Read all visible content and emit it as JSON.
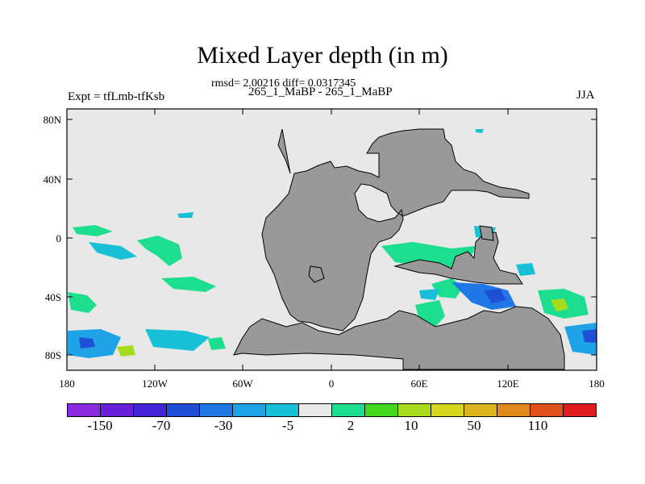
{
  "title": "Mixed Layer depth (in m)",
  "stats_line": "rmsd= 2.00216 diff= 0.0317345",
  "cases_line": "265_1_MaBP - 265_1_MaBP",
  "expt_label": "Expt = tfLmb-tfKsb",
  "season_label": "JJA",
  "axes": {
    "lat_ticks": [
      "80N",
      "40N",
      "0",
      "40S",
      "80S"
    ],
    "lon_ticks": [
      "180",
      "120W",
      "60W",
      "0",
      "60E",
      "120E",
      "180"
    ]
  },
  "colors": {
    "ocean": "#e8e8e8",
    "land": "#999999"
  },
  "colorbar": {
    "labels": [
      "-150",
      "-70",
      "-30",
      "-5",
      "2",
      "10",
      "50",
      "110"
    ],
    "colors": [
      "#8a2be2",
      "#6a1fd8",
      "#4424d6",
      "#1e4fd6",
      "#1f78e6",
      "#1ea3e6",
      "#17c0d6",
      "#e8e8e8",
      "#1dde8f",
      "#44d81d",
      "#a6dc1d",
      "#d6d61d",
      "#dcb41d",
      "#e08a1d",
      "#e0501d",
      "#e01d1d"
    ]
  }
}
